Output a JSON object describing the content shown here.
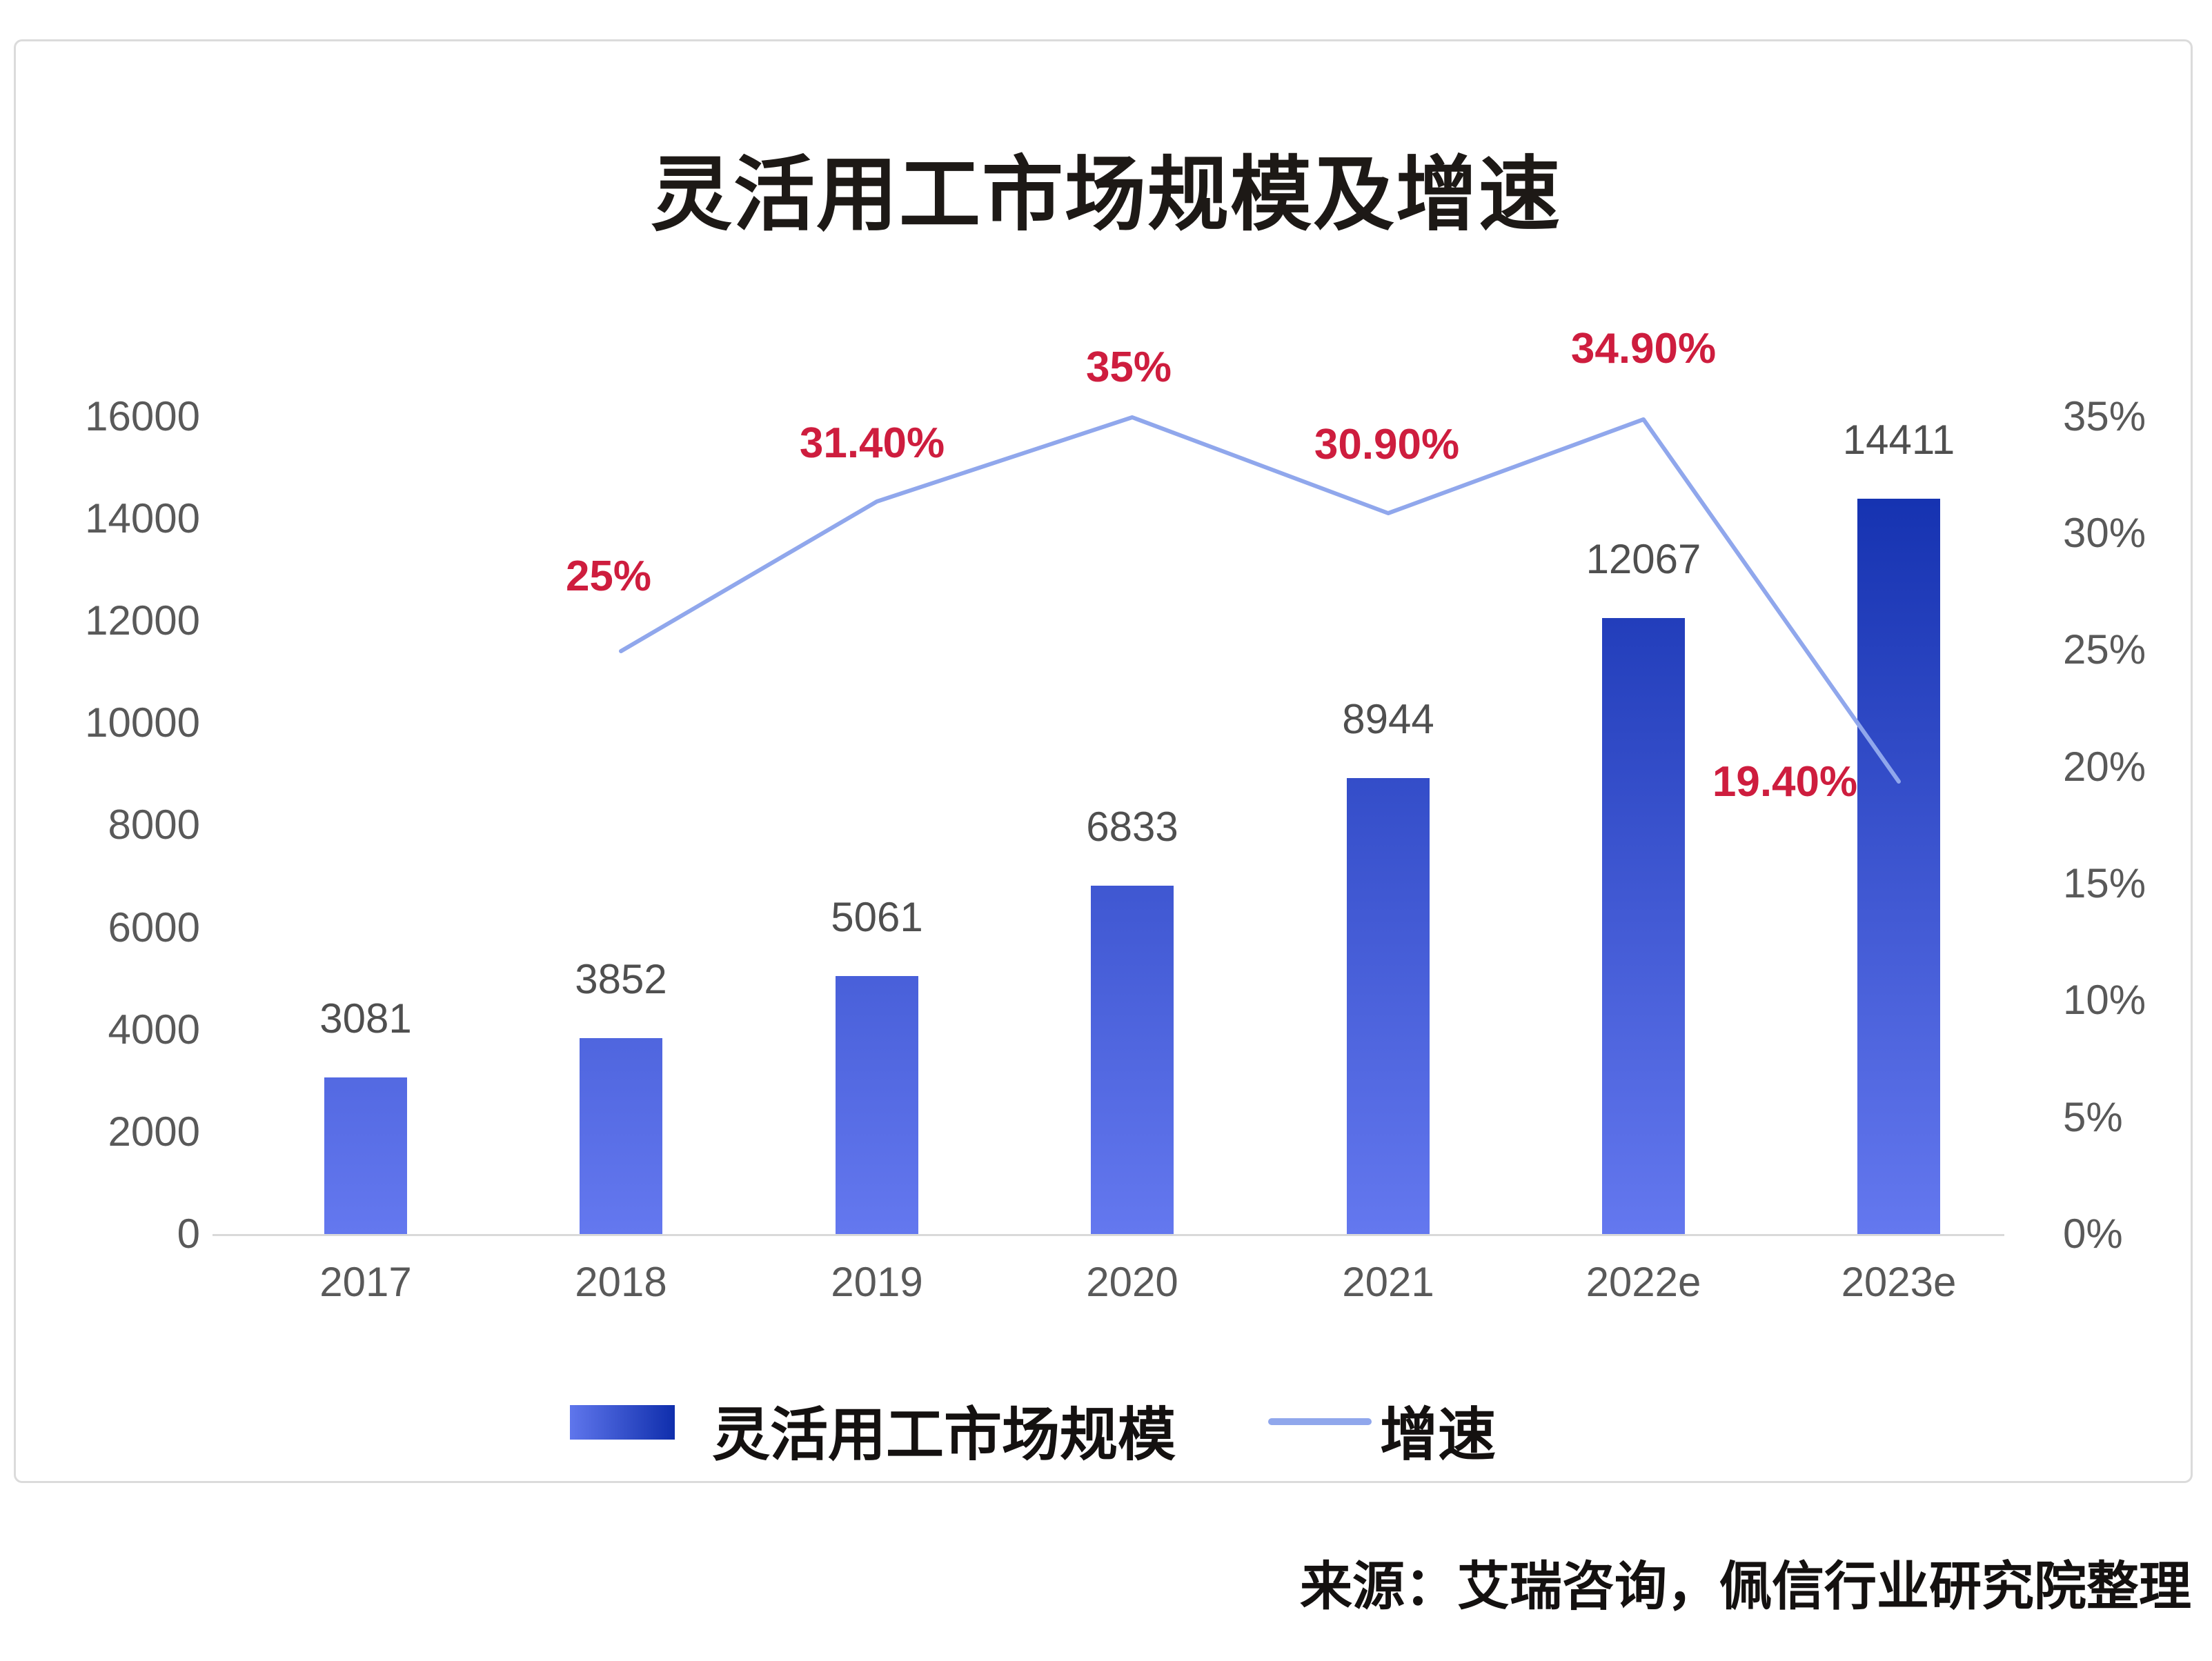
{
  "title": "灵活用工市场规模及增速",
  "legend": {
    "bar_label": "灵活用工市场规模",
    "line_label": "增速"
  },
  "source": "来源：艾瑞咨询，佩信行业研究院整理",
  "colors": {
    "bar_gradient_top": "#0D2BAA",
    "bar_gradient_bottom": "#6478EF",
    "line": "#90A7EC",
    "growth_label": "#CE1D3E",
    "axis_text": "#595959",
    "bar_value_text": "#4F4F4F",
    "axis_line": "#D9D9D9",
    "card_border": "#DBDBDB"
  },
  "chart_data": {
    "type": "bar",
    "subtype": "combo-bar-line-dual-axis",
    "title": "灵活用工市场规模及增速",
    "categories": [
      "2017",
      "2018",
      "2019",
      "2020",
      "2021",
      "2022e",
      "2023e"
    ],
    "series": [
      {
        "name": "灵活用工市场规模",
        "type": "bar",
        "axis": "left",
        "values": [
          3081,
          3852,
          5061,
          6833,
          8944,
          12067,
          14411
        ],
        "value_labels": [
          "3081",
          "3852",
          "5061",
          "6833",
          "8944",
          "12067",
          "14411"
        ]
      },
      {
        "name": "增速",
        "type": "line",
        "axis": "right",
        "values_percent": [
          null,
          25,
          31.4,
          35,
          30.9,
          34.9,
          19.4
        ],
        "value_labels": [
          "",
          "25%",
          "31.40%",
          "35%",
          "30.90%",
          "34.90%",
          "19.40%"
        ]
      }
    ],
    "left_axis": {
      "min": 0,
      "max": 16000,
      "tick_step": 2000,
      "ticks": [
        "16000",
        "14000",
        "12000",
        "10000",
        "8000",
        "6000",
        "4000",
        "2000",
        "0"
      ]
    },
    "right_axis": {
      "min": "0%",
      "max": "35%",
      "tick_step": "5%",
      "ticks": [
        "35%",
        "30%",
        "25%",
        "20%",
        "15%",
        "10%",
        "5%",
        "0%"
      ]
    },
    "grid": "off",
    "legend_position": "bottom"
  }
}
